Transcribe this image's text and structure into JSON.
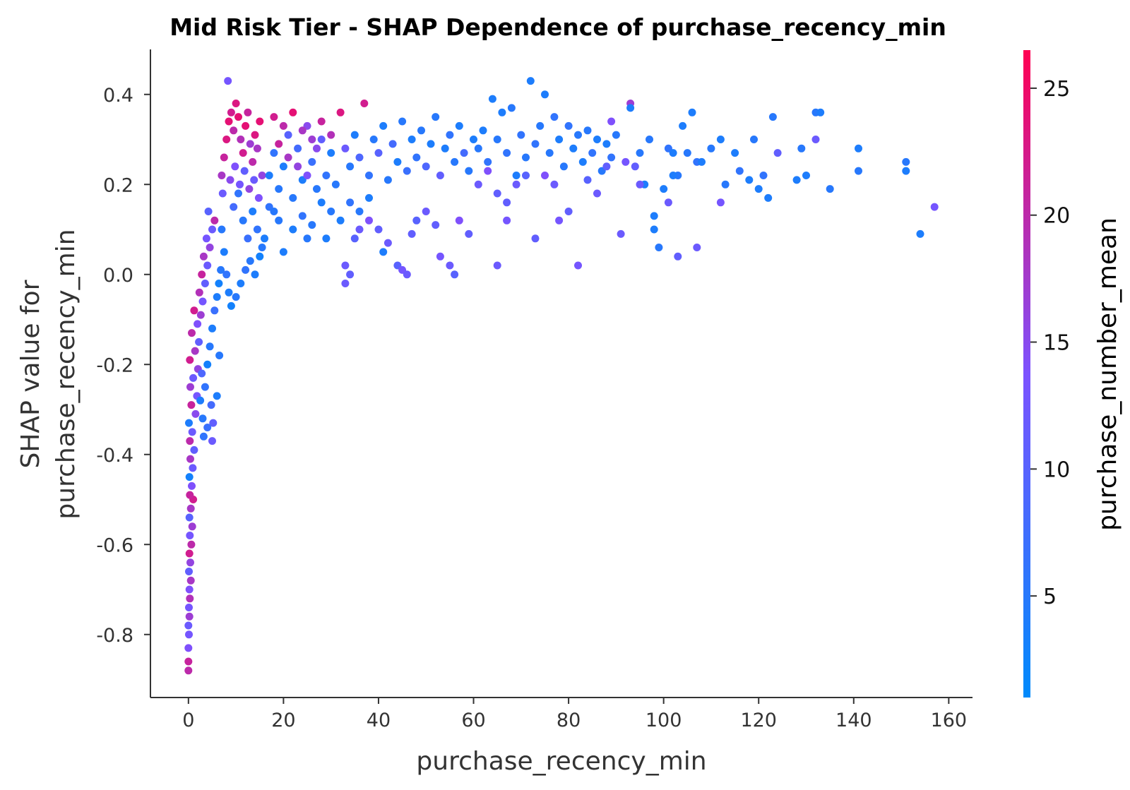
{
  "chart_data": {
    "type": "scatter",
    "title": "Mid Risk Tier - SHAP Dependence of purchase_recency_min",
    "xlabel": "purchase_recency_min",
    "ylabel_line1": "SHAP value for",
    "ylabel_line2": "purchase_recency_min",
    "xlim": [
      -8,
      165
    ],
    "ylim": [
      -0.94,
      0.5
    ],
    "x_ticks": [
      0,
      20,
      40,
      60,
      80,
      100,
      120,
      140,
      160
    ],
    "x_tick_labels": [
      "0",
      "20",
      "40",
      "60",
      "80",
      "100",
      "120",
      "140",
      "160"
    ],
    "y_ticks": [
      0.4,
      0.2,
      0.0,
      -0.2,
      -0.4,
      -0.6,
      -0.8
    ],
    "y_tick_labels": [
      "0.4",
      "0.2",
      "0.0",
      "-0.2",
      "-0.4",
      "-0.6",
      "-0.8"
    ],
    "colorbar": {
      "label": "purchase_number_mean",
      "range": [
        1,
        26.5
      ],
      "ticks": [
        5,
        10,
        15,
        20,
        25
      ],
      "tick_labels": [
        "5",
        "10",
        "15",
        "20",
        "25"
      ],
      "low_color": "#008afb",
      "mid_color": "#7c52ff",
      "high_color": "#ff0052"
    },
    "points": [
      [
        0.0,
        -0.88,
        20
      ],
      [
        0.0,
        -0.86,
        21
      ],
      [
        0.0,
        -0.83,
        14
      ],
      [
        0.1,
        -0.8,
        13
      ],
      [
        0.0,
        -0.78,
        12
      ],
      [
        0.2,
        -0.76,
        17
      ],
      [
        0.1,
        -0.74,
        13
      ],
      [
        0.3,
        -0.72,
        19
      ],
      [
        0.2,
        -0.7,
        14
      ],
      [
        0.5,
        -0.68,
        18
      ],
      [
        0.1,
        -0.66,
        11
      ],
      [
        0.4,
        -0.64,
        16
      ],
      [
        0.2,
        -0.62,
        22
      ],
      [
        0.6,
        -0.6,
        20
      ],
      [
        0.3,
        -0.58,
        13
      ],
      [
        0.8,
        -0.56,
        17
      ],
      [
        0.2,
        -0.54,
        10
      ],
      [
        0.5,
        -0.52,
        18
      ],
      [
        1.0,
        -0.5,
        22
      ],
      [
        0.3,
        -0.49,
        21
      ],
      [
        0.7,
        -0.47,
        14
      ],
      [
        0.2,
        -0.45,
        3
      ],
      [
        0.9,
        -0.43,
        12
      ],
      [
        0.4,
        -0.41,
        18
      ],
      [
        1.2,
        -0.39,
        11
      ],
      [
        0.3,
        -0.37,
        20
      ],
      [
        0.8,
        -0.35,
        12
      ],
      [
        0.1,
        -0.33,
        4
      ],
      [
        1.5,
        -0.31,
        15
      ],
      [
        0.6,
        -0.29,
        21
      ],
      [
        1.8,
        -0.27,
        13
      ],
      [
        0.4,
        -0.25,
        17
      ],
      [
        1.0,
        -0.23,
        12
      ],
      [
        2.0,
        -0.21,
        16
      ],
      [
        0.3,
        -0.19,
        22
      ],
      [
        1.4,
        -0.17,
        18
      ],
      [
        2.2,
        -0.15,
        11
      ],
      [
        0.7,
        -0.13,
        20
      ],
      [
        1.9,
        -0.11,
        14
      ],
      [
        2.6,
        -0.09,
        17
      ],
      [
        1.2,
        -0.08,
        22
      ],
      [
        3.0,
        -0.06,
        13
      ],
      [
        2.3,
        -0.04,
        19
      ],
      [
        3.5,
        -0.02,
        11
      ],
      [
        2.8,
        0.0,
        21
      ],
      [
        4.0,
        0.02,
        12
      ],
      [
        3.2,
        0.04,
        18
      ],
      [
        4.5,
        0.06,
        16
      ],
      [
        3.8,
        0.08,
        13
      ],
      [
        5.0,
        0.1,
        12
      ],
      [
        5.5,
        0.12,
        20
      ],
      [
        4.2,
        0.14,
        10
      ],
      [
        2.5,
        -0.28,
        4
      ],
      [
        3.0,
        -0.32,
        5
      ],
      [
        3.5,
        -0.25,
        6
      ],
      [
        4.0,
        -0.2,
        3
      ],
      [
        4.5,
        -0.16,
        5
      ],
      [
        5.0,
        -0.12,
        4
      ],
      [
        5.5,
        -0.08,
        7
      ],
      [
        6.0,
        -0.05,
        4
      ],
      [
        6.4,
        -0.02,
        3
      ],
      [
        6.8,
        0.01,
        5
      ],
      [
        3.2,
        -0.36,
        6
      ],
      [
        4.8,
        -0.29,
        8
      ],
      [
        2.8,
        -0.22,
        9
      ],
      [
        5.2,
        -0.33,
        11
      ],
      [
        6.0,
        -0.27,
        4
      ],
      [
        6.5,
        -0.18,
        5
      ],
      [
        5.0,
        -0.37,
        12
      ],
      [
        4.0,
        -0.34,
        7
      ],
      [
        7.0,
        0.1,
        5
      ],
      [
        7.5,
        0.05,
        4
      ],
      [
        8.0,
        0.0,
        6
      ],
      [
        8.5,
        -0.04,
        4
      ],
      [
        9.0,
        -0.07,
        3
      ],
      [
        10.0,
        -0.05,
        5
      ],
      [
        11.0,
        -0.02,
        4
      ],
      [
        12.0,
        0.01,
        6
      ],
      [
        13.0,
        0.03,
        5
      ],
      [
        14.0,
        0.0,
        4
      ],
      [
        15.0,
        0.04,
        3
      ],
      [
        9.5,
        0.15,
        8
      ],
      [
        10.5,
        0.18,
        6
      ],
      [
        11.5,
        0.12,
        5
      ],
      [
        12.5,
        0.08,
        7
      ],
      [
        13.5,
        0.14,
        4
      ],
      [
        14.5,
        0.1,
        6
      ],
      [
        15.5,
        0.06,
        5
      ],
      [
        7.0,
        0.22,
        18
      ],
      [
        7.5,
        0.26,
        21
      ],
      [
        8.0,
        0.3,
        23
      ],
      [
        8.5,
        0.34,
        24
      ],
      [
        9.0,
        0.36,
        22
      ],
      [
        9.5,
        0.32,
        20
      ],
      [
        10.0,
        0.38,
        23
      ],
      [
        10.5,
        0.35,
        24
      ],
      [
        11.0,
        0.3,
        19
      ],
      [
        11.5,
        0.27,
        22
      ],
      [
        12.0,
        0.33,
        24
      ],
      [
        12.5,
        0.36,
        21
      ],
      [
        13.0,
        0.29,
        17
      ],
      [
        13.5,
        0.25,
        20
      ],
      [
        14.0,
        0.31,
        23
      ],
      [
        14.5,
        0.28,
        18
      ],
      [
        15.0,
        0.34,
        24
      ],
      [
        15.5,
        0.22,
        16
      ],
      [
        8.3,
        0.43,
        13
      ],
      [
        7.2,
        0.18,
        12
      ],
      [
        8.8,
        0.21,
        15
      ],
      [
        9.8,
        0.24,
        14
      ],
      [
        10.8,
        0.2,
        13
      ],
      [
        11.8,
        0.23,
        11
      ],
      [
        12.8,
        0.19,
        16
      ],
      [
        13.8,
        0.21,
        12
      ],
      [
        14.8,
        0.17,
        14
      ],
      [
        17,
        0.22,
        4
      ],
      [
        18,
        0.27,
        6
      ],
      [
        19,
        0.19,
        5
      ],
      [
        20,
        0.24,
        4
      ],
      [
        21,
        0.31,
        10
      ],
      [
        22,
        0.17,
        5
      ],
      [
        23,
        0.28,
        8
      ],
      [
        24,
        0.21,
        4
      ],
      [
        25,
        0.33,
        15
      ],
      [
        26,
        0.25,
        7
      ],
      [
        27,
        0.19,
        5
      ],
      [
        28,
        0.3,
        11
      ],
      [
        29,
        0.22,
        6
      ],
      [
        30,
        0.27,
        4
      ],
      [
        31,
        0.2,
        5
      ],
      [
        32,
        0.36,
        23
      ],
      [
        33,
        0.28,
        12
      ],
      [
        34,
        0.24,
        5
      ],
      [
        35,
        0.31,
        4
      ],
      [
        36,
        0.26,
        9
      ],
      [
        37,
        0.38,
        22
      ],
      [
        38,
        0.22,
        6
      ],
      [
        39,
        0.3,
        5
      ],
      [
        40,
        0.27,
        10
      ],
      [
        41,
        0.33,
        4
      ],
      [
        42,
        0.21,
        5
      ],
      [
        43,
        0.29,
        8
      ],
      [
        44,
        0.25,
        4
      ],
      [
        45,
        0.34,
        5
      ],
      [
        46,
        0.23,
        7
      ],
      [
        47,
        0.3,
        4
      ],
      [
        48,
        0.26,
        6
      ],
      [
        49,
        0.32,
        5
      ],
      [
        50,
        0.24,
        9
      ],
      [
        51,
        0.29,
        4
      ],
      [
        52,
        0.35,
        5
      ],
      [
        53,
        0.22,
        11
      ],
      [
        54,
        0.28,
        4
      ],
      [
        55,
        0.31,
        6
      ],
      [
        56,
        0.25,
        5
      ],
      [
        57,
        0.33,
        4
      ],
      [
        58,
        0.27,
        8
      ],
      [
        59,
        0.23,
        5
      ],
      [
        60,
        0.3,
        4
      ],
      [
        18,
        0.35,
        22
      ],
      [
        20,
        0.33,
        20
      ],
      [
        22,
        0.36,
        24
      ],
      [
        24,
        0.32,
        18
      ],
      [
        26,
        0.3,
        17
      ],
      [
        28,
        0.34,
        21
      ],
      [
        30,
        0.31,
        19
      ],
      [
        19,
        0.29,
        21
      ],
      [
        21,
        0.26,
        18
      ],
      [
        23,
        0.24,
        16
      ],
      [
        25,
        0.22,
        14
      ],
      [
        27,
        0.28,
        15
      ],
      [
        17,
        0.15,
        6
      ],
      [
        19,
        0.12,
        5
      ],
      [
        20,
        0.05,
        4
      ],
      [
        22,
        0.1,
        4
      ],
      [
        24,
        0.13,
        6
      ],
      [
        26,
        0.11,
        5
      ],
      [
        28,
        0.16,
        4
      ],
      [
        30,
        0.14,
        5
      ],
      [
        32,
        0.12,
        4
      ],
      [
        34,
        0.16,
        6
      ],
      [
        36,
        0.14,
        5
      ],
      [
        38,
        0.17,
        4
      ],
      [
        16,
        0.08,
        4
      ],
      [
        18,
        0.14,
        5
      ],
      [
        29,
        0.08,
        4
      ],
      [
        25,
        0.08,
        5
      ],
      [
        33,
        0.02,
        12
      ],
      [
        34,
        0.0,
        11
      ],
      [
        35,
        0.08,
        10
      ],
      [
        36,
        0.1,
        12
      ],
      [
        38,
        0.12,
        14
      ],
      [
        40,
        0.1,
        11
      ],
      [
        41,
        0.05,
        4
      ],
      [
        42,
        0.07,
        12
      ],
      [
        44,
        0.02,
        10
      ],
      [
        45,
        0.01,
        13
      ],
      [
        46,
        0.0,
        12
      ],
      [
        47,
        0.09,
        11
      ],
      [
        48,
        0.12,
        10
      ],
      [
        50,
        0.14,
        12
      ],
      [
        52,
        0.11,
        11
      ],
      [
        53,
        0.04,
        13
      ],
      [
        55,
        0.02,
        12
      ],
      [
        56,
        0.0,
        10
      ],
      [
        57,
        0.12,
        14
      ],
      [
        59,
        0.09,
        11
      ],
      [
        33,
        -0.02,
        12
      ],
      [
        61,
        0.28,
        5
      ],
      [
        62,
        0.32,
        4
      ],
      [
        63,
        0.25,
        6
      ],
      [
        64,
        0.39,
        4
      ],
      [
        65,
        0.3,
        5
      ],
      [
        66,
        0.36,
        4
      ],
      [
        67,
        0.27,
        6
      ],
      [
        68,
        0.37,
        5
      ],
      [
        69,
        0.22,
        4
      ],
      [
        70,
        0.31,
        6
      ],
      [
        71,
        0.26,
        5
      ],
      [
        72,
        0.43,
        4
      ],
      [
        73,
        0.29,
        6
      ],
      [
        74,
        0.33,
        5
      ],
      [
        75,
        0.4,
        4
      ],
      [
        76,
        0.27,
        5
      ],
      [
        77,
        0.35,
        6
      ],
      [
        78,
        0.3,
        4
      ],
      [
        79,
        0.24,
        5
      ],
      [
        80,
        0.33,
        6
      ],
      [
        81,
        0.28,
        4
      ],
      [
        82,
        0.31,
        5
      ],
      [
        83,
        0.25,
        4
      ],
      [
        84,
        0.32,
        5
      ],
      [
        85,
        0.27,
        6
      ],
      [
        86,
        0.3,
        4
      ],
      [
        87,
        0.23,
        5
      ],
      [
        88,
        0.29,
        4
      ],
      [
        89,
        0.26,
        6
      ],
      [
        90,
        0.31,
        5
      ],
      [
        61,
        0.2,
        12
      ],
      [
        63,
        0.23,
        14
      ],
      [
        65,
        0.18,
        11
      ],
      [
        67,
        0.12,
        13
      ],
      [
        69,
        0.2,
        12
      ],
      [
        71,
        0.22,
        10
      ],
      [
        73,
        0.08,
        11
      ],
      [
        75,
        0.22,
        14
      ],
      [
        77,
        0.2,
        12
      ],
      [
        78,
        0.12,
        13
      ],
      [
        80,
        0.14,
        11
      ],
      [
        82,
        0.02,
        13
      ],
      [
        84,
        0.21,
        10
      ],
      [
        86,
        0.18,
        12
      ],
      [
        88,
        0.24,
        11
      ],
      [
        89,
        0.34,
        14
      ],
      [
        91,
        0.09,
        12
      ],
      [
        92,
        0.25,
        13
      ],
      [
        93,
        0.38,
        17
      ],
      [
        94,
        0.24,
        11
      ],
      [
        65,
        0.02,
        12
      ],
      [
        67,
        0.16,
        11
      ],
      [
        93,
        0.37,
        4
      ],
      [
        95,
        0.27,
        5
      ],
      [
        96,
        0.2,
        4
      ],
      [
        97,
        0.3,
        5
      ],
      [
        98,
        0.13,
        4
      ],
      [
        99,
        0.06,
        5
      ],
      [
        100,
        0.19,
        4
      ],
      [
        101,
        0.28,
        6
      ],
      [
        102,
        0.27,
        4
      ],
      [
        103,
        0.22,
        5
      ],
      [
        104,
        0.33,
        4
      ],
      [
        105,
        0.27,
        5
      ],
      [
        106,
        0.36,
        4
      ],
      [
        107,
        0.25,
        6
      ],
      [
        108,
        0.25,
        4
      ],
      [
        110,
        0.28,
        5
      ],
      [
        112,
        0.3,
        4
      ],
      [
        113,
        0.2,
        5
      ],
      [
        115,
        0.27,
        4
      ],
      [
        116,
        0.23,
        6
      ],
      [
        118,
        0.21,
        4
      ],
      [
        119,
        0.3,
        5
      ],
      [
        120,
        0.19,
        4
      ],
      [
        121,
        0.22,
        6
      ],
      [
        122,
        0.17,
        4
      ],
      [
        123,
        0.35,
        5
      ],
      [
        124,
        0.27,
        11
      ],
      [
        128,
        0.21,
        4
      ],
      [
        129,
        0.28,
        5
      ],
      [
        130,
        0.22,
        4
      ],
      [
        132,
        0.36,
        5
      ],
      [
        133,
        0.36,
        4
      ],
      [
        135,
        0.19,
        5
      ],
      [
        141,
        0.28,
        4
      ],
      [
        141,
        0.23,
        5
      ],
      [
        151,
        0.23,
        4
      ],
      [
        151,
        0.25,
        5
      ],
      [
        154,
        0.09,
        4
      ],
      [
        157,
        0.15,
        13
      ],
      [
        98,
        0.1,
        4
      ],
      [
        101,
        0.16,
        12
      ],
      [
        103,
        0.04,
        11
      ],
      [
        107,
        0.06,
        12
      ],
      [
        112,
        0.16,
        13
      ],
      [
        132,
        0.3,
        12
      ],
      [
        102,
        0.22,
        4
      ],
      [
        95,
        0.2,
        12
      ]
    ]
  }
}
